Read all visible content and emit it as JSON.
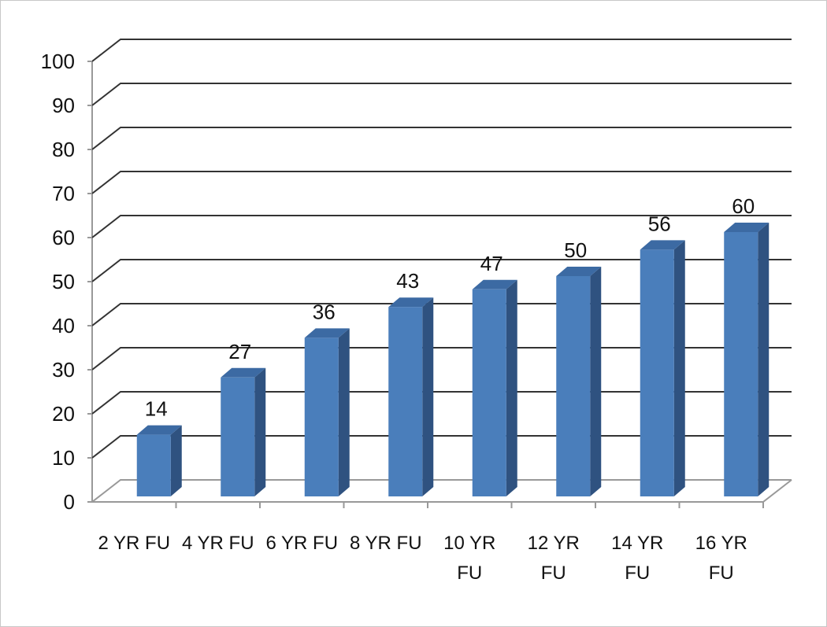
{
  "chart_data": {
    "type": "bar",
    "style": "3d-column",
    "title": "",
    "xlabel": "",
    "ylabel": "",
    "categories": [
      [
        "2 YR FU"
      ],
      [
        "4 YR FU"
      ],
      [
        "6 YR FU"
      ],
      [
        "8 YR FU"
      ],
      [
        "10 YR",
        "FU"
      ],
      [
        "12 YR",
        "FU"
      ],
      [
        "14 YR",
        "FU"
      ],
      [
        "16 YR",
        "FU"
      ]
    ],
    "values": [
      14,
      27,
      36,
      43,
      47,
      50,
      56,
      60
    ],
    "data_labels": [
      "14",
      "27",
      "36",
      "43",
      "47",
      "50",
      "56",
      "60"
    ],
    "yticks": [
      "0",
      "10",
      "20",
      "30",
      "40",
      "50",
      "60",
      "70",
      "80",
      "90",
      "100"
    ],
    "ylim": [
      0,
      100
    ],
    "grid": true,
    "legend": "none",
    "colors": {
      "bar_front": "#4a7ebb",
      "bar_side": "#2f5280",
      "bar_top": "#3c6aa3",
      "gridline": "#333333",
      "wall": "#999999"
    }
  }
}
